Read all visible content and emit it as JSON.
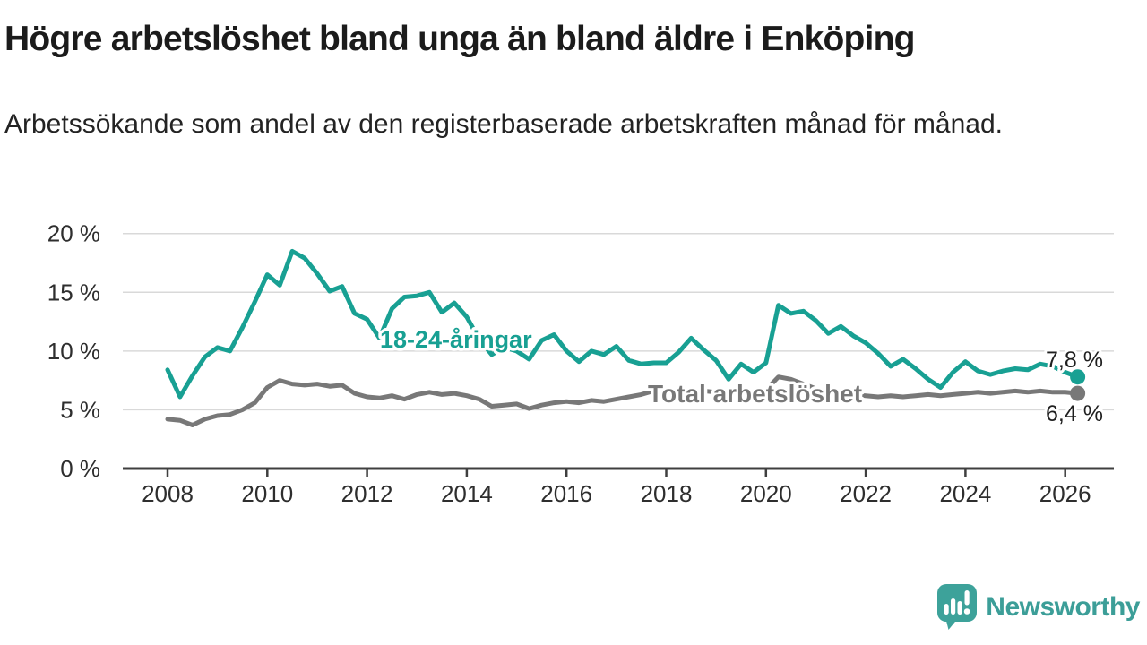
{
  "header": {
    "title": "Högre arbetslöshet bland unga än bland äldre i Enköping",
    "subtitle": "Arbetssökande som andel av den registerbaserade arbetskraften månad för månad."
  },
  "chart_data": {
    "type": "line",
    "title": "Högre arbetslöshet bland unga än bland äldre i Enköping",
    "subtitle": "Arbetssökande som andel av den registerbaserade arbetskraften månad för månad.",
    "grid": "horizontal",
    "legend": "inline-labels",
    "x_start": 2008.0,
    "x_step": 0.25,
    "x_axis": {
      "ticks": [
        2008,
        2010,
        2012,
        2014,
        2016,
        2018,
        2020,
        2022,
        2024,
        2026
      ],
      "labels": [
        "2008",
        "2010",
        "2012",
        "2014",
        "2016",
        "2018",
        "2020",
        "2022",
        "2024",
        "2026"
      ]
    },
    "y_axis": {
      "ticks": [
        0,
        5,
        10,
        15,
        20
      ],
      "labels": [
        "0 %",
        "5 %",
        "10 %",
        "15 %",
        "20 %"
      ],
      "lim": [
        0,
        20.5
      ]
    },
    "series": [
      {
        "id": "total",
        "name": "Total arbetslöshet",
        "color": "#787878",
        "end_label": "6,4 %",
        "values": [
          4.2,
          4.1,
          3.7,
          4.2,
          4.5,
          4.6,
          5.0,
          5.6,
          6.9,
          7.5,
          7.2,
          7.1,
          7.2,
          7.0,
          7.1,
          6.4,
          6.1,
          6.0,
          6.2,
          5.9,
          6.3,
          6.5,
          6.3,
          6.4,
          6.2,
          5.9,
          5.3,
          5.4,
          5.5,
          5.1,
          5.4,
          5.6,
          5.7,
          5.6,
          5.8,
          5.7,
          5.9,
          6.1,
          6.3,
          6.6,
          6.3,
          6.6,
          6.5,
          6.6,
          6.5,
          6.4,
          6.6,
          6.5,
          6.7,
          7.8,
          7.6,
          7.2,
          6.8,
          6.5,
          6.4,
          6.3,
          6.2,
          6.1,
          6.2,
          6.1,
          6.2,
          6.3,
          6.2,
          6.3,
          6.4,
          6.5,
          6.4,
          6.5,
          6.6,
          6.5,
          6.6,
          6.5,
          6.5,
          6.4
        ]
      },
      {
        "id": "youth",
        "name": "18-24-åringar",
        "color": "#18a093",
        "end_label": "7,8 %",
        "values": [
          8.4,
          6.1,
          7.9,
          9.5,
          10.3,
          10.0,
          12.0,
          14.2,
          16.5,
          15.6,
          18.5,
          17.9,
          16.6,
          15.1,
          15.5,
          13.2,
          12.7,
          11.1,
          13.6,
          14.6,
          14.7,
          15.0,
          13.3,
          14.1,
          12.9,
          11.0,
          9.7,
          10.3,
          10.0,
          9.3,
          10.9,
          11.4,
          10.0,
          9.1,
          10.0,
          9.7,
          10.4,
          9.2,
          8.9,
          9.0,
          9.0,
          9.9,
          11.1,
          10.1,
          9.2,
          7.6,
          8.9,
          8.2,
          9.0,
          13.9,
          13.2,
          13.4,
          12.6,
          11.5,
          12.1,
          11.3,
          10.7,
          9.8,
          8.7,
          9.3,
          8.5,
          7.6,
          6.9,
          8.2,
          9.1,
          8.3,
          8.0,
          8.3,
          8.5,
          8.4,
          8.9,
          8.7,
          8.2,
          7.8
        ]
      }
    ]
  },
  "footer": {
    "brand": "Newsworthy",
    "brand_color": "#3c9e98"
  }
}
